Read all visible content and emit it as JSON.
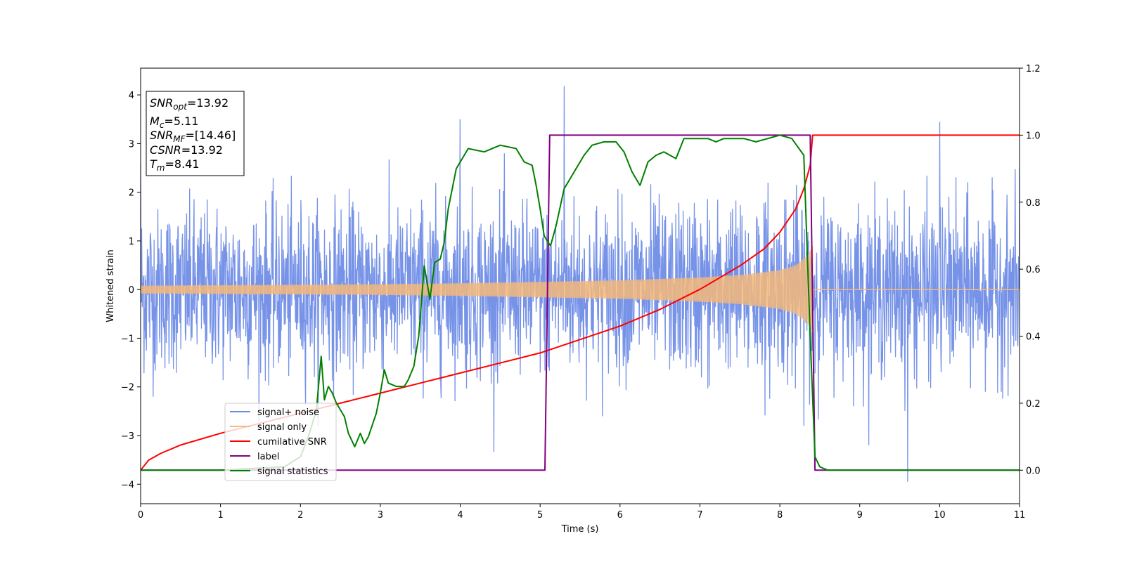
{
  "chart_data": {
    "type": "line",
    "xlabel": "Time (s)",
    "ylabel": "Whitened strain",
    "xlim": [
      0,
      11
    ],
    "ylim": [
      -4.4,
      4.55
    ],
    "y2lim": [
      -0.1,
      1.2
    ],
    "xticks": [
      "0",
      "1",
      "2",
      "3",
      "4",
      "5",
      "6",
      "7",
      "8",
      "9",
      "10",
      "11"
    ],
    "yticks": [
      "−4",
      "−3",
      "−2",
      "−1",
      "0",
      "1",
      "2",
      "3",
      "4"
    ],
    "y2ticks": [
      "0.0",
      "0.2",
      "0.4",
      "0.6",
      "0.8",
      "1.0",
      "1.2"
    ],
    "grid": false,
    "legend_position": "lower-left",
    "series": [
      {
        "name": "signal+ noise",
        "color": "#6b8ae6",
        "axis": "left",
        "description_points": {
          "x": [
            0,
            4.0,
            5.3,
            9.6,
            10.0,
            11
          ],
          "y_peaks": [
            2.6,
            3.5,
            4.18,
            -3.95,
            3.45,
            2.5
          ]
        },
        "amplitude_range": [
          -3.95,
          4.18
        ]
      },
      {
        "name": "signal only",
        "color": "#f5b97a",
        "axis": "left",
        "envelope": {
          "x": [
            0,
            1,
            2,
            3,
            4,
            5,
            6,
            7,
            7.5,
            8,
            8.2,
            8.35,
            8.41,
            8.42,
            11
          ],
          "amp": [
            0.08,
            0.09,
            0.1,
            0.11,
            0.13,
            0.16,
            0.19,
            0.25,
            0.3,
            0.4,
            0.5,
            0.7,
            0.9,
            0.0,
            0.0
          ]
        }
      },
      {
        "name": "cumilative SNR",
        "color": "#ff0000",
        "axis": "right",
        "x": [
          0,
          0.1,
          0.25,
          0.5,
          1,
          1.5,
          2,
          2.5,
          3,
          3.5,
          4,
          4.5,
          5,
          5.5,
          6,
          6.5,
          7,
          7.5,
          7.8,
          8.0,
          8.2,
          8.3,
          8.38,
          8.41,
          11
        ],
        "y": [
          0.0,
          0.03,
          0.05,
          0.075,
          0.11,
          0.14,
          0.17,
          0.2,
          0.23,
          0.26,
          0.29,
          0.32,
          0.35,
          0.39,
          0.43,
          0.48,
          0.54,
          0.61,
          0.66,
          0.71,
          0.78,
          0.84,
          0.91,
          1.0,
          1.0
        ]
      },
      {
        "name": "label",
        "color": "#800080",
        "axis": "right",
        "x": [
          0,
          5.06,
          5.12,
          8.38,
          8.44,
          11
        ],
        "y": [
          0,
          0,
          1,
          1,
          0,
          0
        ]
      },
      {
        "name": "signal statistics",
        "color": "#008000",
        "axis": "right",
        "x": [
          0,
          1.0,
          1.8,
          2.0,
          2.1,
          2.2,
          2.26,
          2.3,
          2.35,
          2.4,
          2.45,
          2.55,
          2.6,
          2.68,
          2.75,
          2.8,
          2.85,
          2.95,
          3.0,
          3.05,
          3.1,
          3.2,
          3.3,
          3.35,
          3.42,
          3.48,
          3.55,
          3.62,
          3.68,
          3.75,
          3.8,
          3.85,
          3.95,
          4.1,
          4.3,
          4.5,
          4.7,
          4.8,
          4.9,
          4.95,
          5.0,
          5.05,
          5.1,
          5.13,
          5.2,
          5.3,
          5.35,
          5.45,
          5.55,
          5.65,
          5.8,
          5.95,
          6.05,
          6.15,
          6.25,
          6.35,
          6.45,
          6.55,
          6.7,
          6.8,
          6.9,
          7.0,
          7.1,
          7.2,
          7.3,
          7.4,
          7.55,
          7.7,
          7.85,
          8.0,
          8.15,
          8.3,
          8.38,
          8.44,
          8.5,
          8.6,
          8.8,
          11
        ],
        "y": [
          0,
          0,
          0.01,
          0.04,
          0.1,
          0.18,
          0.34,
          0.21,
          0.25,
          0.23,
          0.2,
          0.16,
          0.11,
          0.07,
          0.11,
          0.08,
          0.1,
          0.17,
          0.23,
          0.3,
          0.26,
          0.25,
          0.25,
          0.27,
          0.31,
          0.4,
          0.61,
          0.51,
          0.62,
          0.63,
          0.68,
          0.78,
          0.9,
          0.96,
          0.95,
          0.97,
          0.96,
          0.92,
          0.91,
          0.85,
          0.78,
          0.7,
          0.68,
          0.67,
          0.73,
          0.84,
          0.86,
          0.9,
          0.94,
          0.97,
          0.98,
          0.98,
          0.95,
          0.89,
          0.85,
          0.92,
          0.94,
          0.95,
          0.93,
          0.99,
          0.99,
          0.99,
          0.99,
          0.98,
          0.99,
          0.99,
          0.99,
          0.98,
          0.99,
          1.0,
          0.99,
          0.94,
          0.4,
          0.04,
          0.01,
          0.0,
          0.0,
          0.0
        ]
      }
    ],
    "annotation_box": {
      "snr_opt_label": "SNR",
      "snr_opt_sub": "opt",
      "snr_opt_value": "=13.92",
      "mc_label": "M",
      "mc_sub": "c",
      "mc_value": "=5.11",
      "snr_mf_label": "SNR",
      "snr_mf_sub": "MF",
      "snr_mf_value": "=[14.46]",
      "csnr_label": "CSNR",
      "csnr_value": "=13.92",
      "tm_label": "T",
      "tm_sub": "m",
      "tm_value": "=8.41"
    }
  }
}
